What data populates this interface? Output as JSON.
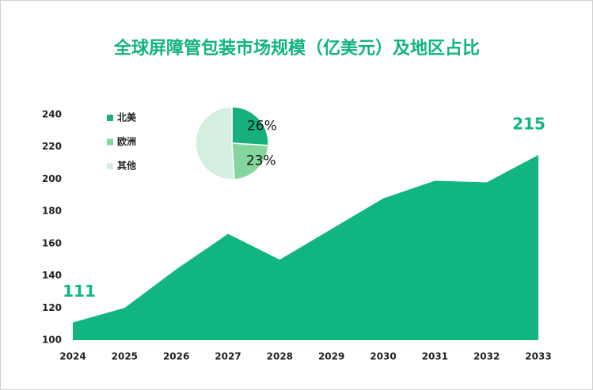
{
  "chart_data": [
    {
      "type": "area",
      "title": "全球屏障管包装市场规模（亿美元）及地区占比",
      "categories": [
        "2024",
        "2025",
        "2026",
        "2027",
        "2028",
        "2029",
        "2030",
        "2031",
        "2032",
        "2033"
      ],
      "values": [
        111,
        120,
        144,
        166,
        150,
        169,
        188,
        199,
        198,
        215
      ],
      "color": "#10b582",
      "ylim": [
        100,
        240
      ],
      "yticks": [
        100,
        120,
        140,
        160,
        180,
        200,
        220,
        240
      ]
    },
    {
      "type": "pie",
      "categories": [
        "北美",
        "欧洲",
        "其他"
      ],
      "values": [
        26,
        23,
        51
      ],
      "value_labels": [
        "26%",
        "23%",
        null
      ],
      "colors": [
        "#16b07f",
        "#84d69c",
        "#d4efe0"
      ]
    }
  ]
}
